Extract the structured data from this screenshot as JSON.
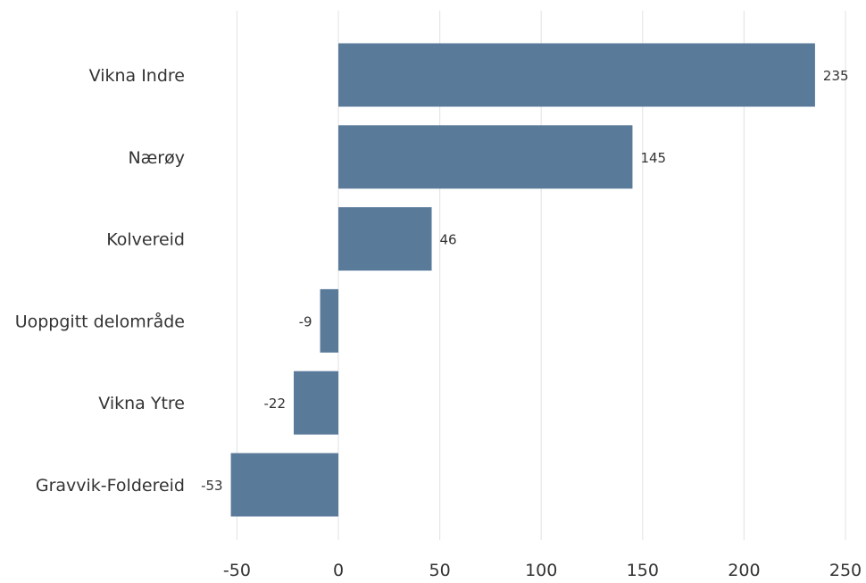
{
  "chart_data": {
    "type": "bar",
    "orientation": "horizontal",
    "categories": [
      "Vikna Indre",
      "Nærøy",
      "Kolvereid",
      "Uoppgitt delområde",
      "Vikna Ytre",
      "Gravvik-Foldereid"
    ],
    "values": [
      235,
      145,
      46,
      -9,
      -22,
      -53
    ],
    "data_labels": [
      "235",
      "145",
      "46",
      "-9",
      "-22",
      "-53"
    ],
    "xlim": [
      -53,
      250
    ],
    "xticks": [
      -50,
      0,
      50,
      100,
      150,
      200,
      250
    ],
    "xtick_labels": [
      "-50",
      "0",
      "50",
      "100",
      "150",
      "200",
      "250"
    ],
    "title": "",
    "xlabel": "",
    "ylabel": "",
    "grid": "vertical",
    "legend": "none",
    "bar_color": "#5a7a9a",
    "grid_color": "#e6e6e6",
    "text_color": "#333333"
  }
}
